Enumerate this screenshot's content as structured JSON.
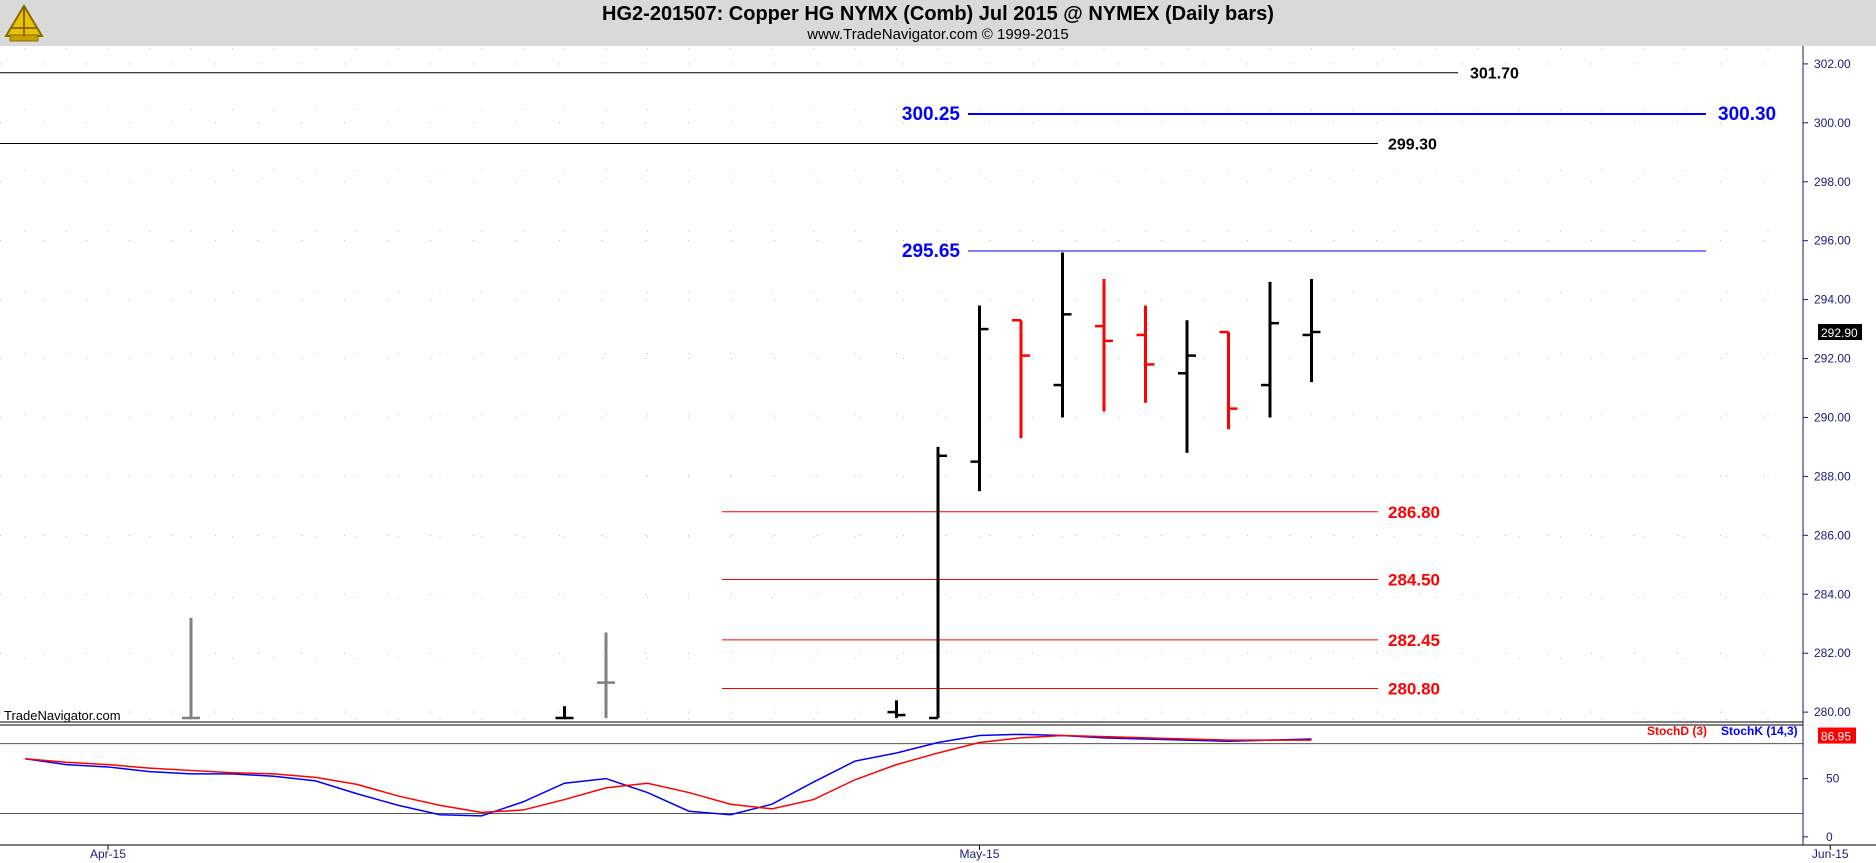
{
  "header": {
    "title": "HG2-201507:  Copper HG NYMX (Comb) Jul 2015 @ NYMEX  (Daily bars)",
    "subtitle": "www.TradeNavigator.com © 1999-2015",
    "logo_icon": "sextant-logo-icon"
  },
  "watermark": "TradeNavigator.com",
  "colors": {
    "up_bar": "#000000",
    "down_bar": "#ff0000",
    "early_bar": "#808080",
    "resistance": "#0000ff",
    "support": "#ff0000",
    "level": "#000000",
    "stoch_d": "#ff0000",
    "stoch_k": "#0000ff",
    "axis": "#1a1a7a"
  },
  "chart_data": [
    {
      "type": "ohlc",
      "title": "HG2-201507:  Copper HG NYMX (Comb) Jul 2015 @ NYMEX  (Daily bars)",
      "x_axis_labels": [
        "Apr-15",
        "May-15",
        "Jun-15"
      ],
      "y_ticks": [
        "280.00",
        "282.00",
        "284.00",
        "286.00",
        "288.00",
        "290.00",
        "292.00",
        "294.00",
        "296.00",
        "298.00",
        "300.00",
        "302.00"
      ],
      "ylim": [
        279.8,
        302.2
      ],
      "last_price": "292.90",
      "grid": true,
      "bars": [
        {
          "x": 4,
          "open": 279.8,
          "high": 283.2,
          "low": 279.8,
          "close": 279.8,
          "color": "gray"
        },
        {
          "x": 13,
          "open": 279.8,
          "high": 280.2,
          "low": 279.8,
          "close": 279.8,
          "color": "black"
        },
        {
          "x": 14,
          "open": 281.0,
          "high": 282.7,
          "low": 279.8,
          "close": 281.0,
          "color": "gray"
        },
        {
          "x": 21,
          "open": 280.0,
          "high": 280.4,
          "low": 279.8,
          "close": 279.9,
          "color": "black"
        },
        {
          "x": 22,
          "open": 279.8,
          "high": 289.0,
          "low": 279.8,
          "close": 288.7,
          "color": "black"
        },
        {
          "x": 23,
          "open": 288.5,
          "high": 293.8,
          "low": 287.5,
          "close": 293.0,
          "color": "black"
        },
        {
          "x": 24,
          "open": 293.3,
          "high": 293.3,
          "low": 289.3,
          "close": 292.1,
          "color": "red"
        },
        {
          "x": 25,
          "open": 291.1,
          "high": 295.6,
          "low": 290.0,
          "close": 293.5,
          "color": "black"
        },
        {
          "x": 26,
          "open": 293.1,
          "high": 294.7,
          "low": 290.2,
          "close": 292.6,
          "color": "red"
        },
        {
          "x": 27,
          "open": 292.8,
          "high": 293.8,
          "low": 290.5,
          "close": 291.8,
          "color": "red"
        },
        {
          "x": 28,
          "open": 291.5,
          "high": 293.3,
          "low": 288.8,
          "close": 292.1,
          "color": "black"
        },
        {
          "x": 29,
          "open": 292.9,
          "high": 292.9,
          "low": 289.6,
          "close": 290.3,
          "color": "red"
        },
        {
          "x": 30,
          "open": 291.1,
          "high": 294.6,
          "low": 290.0,
          "close": 293.2,
          "color": "black"
        },
        {
          "x": 31,
          "open": 292.8,
          "high": 294.7,
          "low": 291.2,
          "close": 292.9,
          "color": "black"
        }
      ],
      "levels": [
        {
          "value": 301.7,
          "label": "301.70",
          "style": "black"
        },
        {
          "value": 300.3,
          "label": "300.30",
          "left_label": "300.25",
          "style": "blue-thick"
        },
        {
          "value": 299.3,
          "label": "299.30",
          "style": "black"
        },
        {
          "value": 295.65,
          "label": "295.65",
          "style": "blue"
        },
        {
          "value": 286.8,
          "label": "286.80",
          "style": "red"
        },
        {
          "value": 284.5,
          "label": "284.50",
          "style": "red"
        },
        {
          "value": 282.45,
          "label": "282.45",
          "style": "red"
        },
        {
          "value": 280.8,
          "label": "280.80",
          "style": "red"
        }
      ]
    },
    {
      "type": "line",
      "legend": [
        {
          "name": "StochD (3)",
          "color": "#ff0000"
        },
        {
          "name": "StochK (14,3)",
          "color": "#0000ff"
        }
      ],
      "last_value": "86.95",
      "y_ticks": [
        "0",
        "50"
      ],
      "ylim": [
        -7,
        96
      ],
      "reference_lines": [
        80,
        20
      ],
      "x": [
        0,
        1,
        2,
        3,
        4,
        5,
        6,
        7,
        8,
        9,
        10,
        11,
        12,
        13,
        14,
        15,
        16,
        17,
        18,
        19,
        20,
        21,
        22,
        23,
        24,
        25,
        26,
        27,
        28,
        29,
        30,
        31
      ],
      "series": [
        {
          "name": "StochK (14,3)",
          "values": [
            67,
            62,
            60,
            56,
            54,
            54,
            52,
            48,
            37,
            27,
            19,
            18,
            30,
            46,
            50,
            38,
            22,
            19,
            28,
            47,
            65,
            72,
            81,
            87,
            88,
            87,
            85,
            84,
            83,
            82,
            83,
            84
          ]
        },
        {
          "name": "StochD (3)",
          "values": [
            67,
            64,
            62,
            59,
            57,
            55,
            54,
            51,
            45,
            35,
            27,
            21,
            23,
            32,
            42,
            46,
            38,
            28,
            24,
            32,
            49,
            62,
            72,
            81,
            85,
            87,
            86,
            85,
            84,
            83,
            83,
            83
          ]
        }
      ]
    }
  ]
}
